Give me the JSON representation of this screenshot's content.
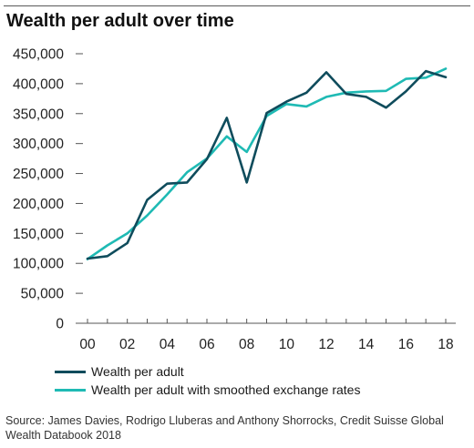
{
  "title": "Wealth per adult over time",
  "source": "Source: James Davies, Rodrigo Lluberas and Anthony Shorrocks, Credit Suisse Global Wealth Databook 2018",
  "chart_data": {
    "type": "line",
    "x": [
      "00",
      "01",
      "02",
      "03",
      "04",
      "05",
      "06",
      "07",
      "08",
      "09",
      "10",
      "11",
      "12",
      "13",
      "14",
      "15",
      "16",
      "17",
      "18"
    ],
    "x_tick_labels": [
      "00",
      "02",
      "04",
      "06",
      "08",
      "10",
      "12",
      "14",
      "16",
      "18"
    ],
    "y_tick_labels": [
      "0",
      "50,000",
      "100,000",
      "150,000",
      "200,000",
      "250,000",
      "300,000",
      "350,000",
      "400,000",
      "450,000"
    ],
    "ylim": [
      0,
      450000
    ],
    "grid": false,
    "legend_position": "bottom-left",
    "series": [
      {
        "name": "Wealth per adult",
        "color": "#0f4c5c",
        "values": [
          108000,
          112000,
          134000,
          206000,
          233000,
          235000,
          274000,
          343000,
          235000,
          351000,
          370000,
          385000,
          419000,
          383000,
          378000,
          360000,
          387000,
          421000,
          411000
        ]
      },
      {
        "name": "Wealth per adult with smoothed exchange rates",
        "color": "#1fbab4",
        "values": [
          107000,
          130000,
          150000,
          180000,
          215000,
          252000,
          275000,
          312000,
          286000,
          346000,
          366000,
          362000,
          378000,
          385000,
          387000,
          388000,
          408000,
          410000,
          425000
        ]
      }
    ]
  }
}
